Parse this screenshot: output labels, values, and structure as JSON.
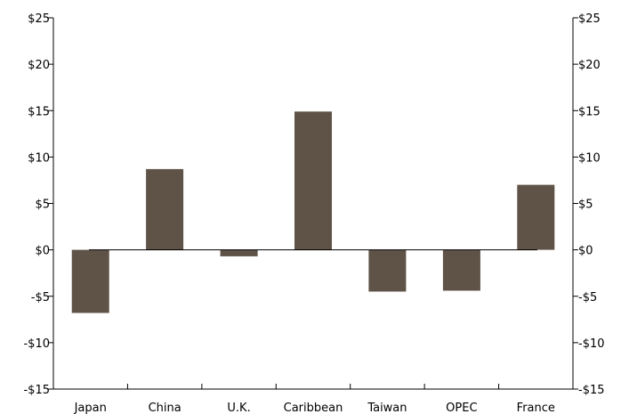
{
  "chart_data": {
    "type": "bar",
    "categories": [
      "Japan",
      "China",
      "U.K.",
      "Caribbean",
      "Taiwan",
      "OPEC",
      "France"
    ],
    "values": [
      -6.8,
      8.7,
      -0.7,
      14.9,
      -4.5,
      -4.4,
      7.0
    ],
    "ylim": [
      -15,
      25
    ],
    "yticks": [
      25,
      20,
      15,
      10,
      5,
      0,
      -5,
      -10,
      -15
    ],
    "ytick_labels": [
      "$25",
      "$20",
      "$15",
      "$10",
      "$5",
      "$0",
      "-$5",
      "-$10",
      "-$15"
    ],
    "bar_color": "#5f5247",
    "grid": false,
    "right_axis_duplicate": true
  }
}
